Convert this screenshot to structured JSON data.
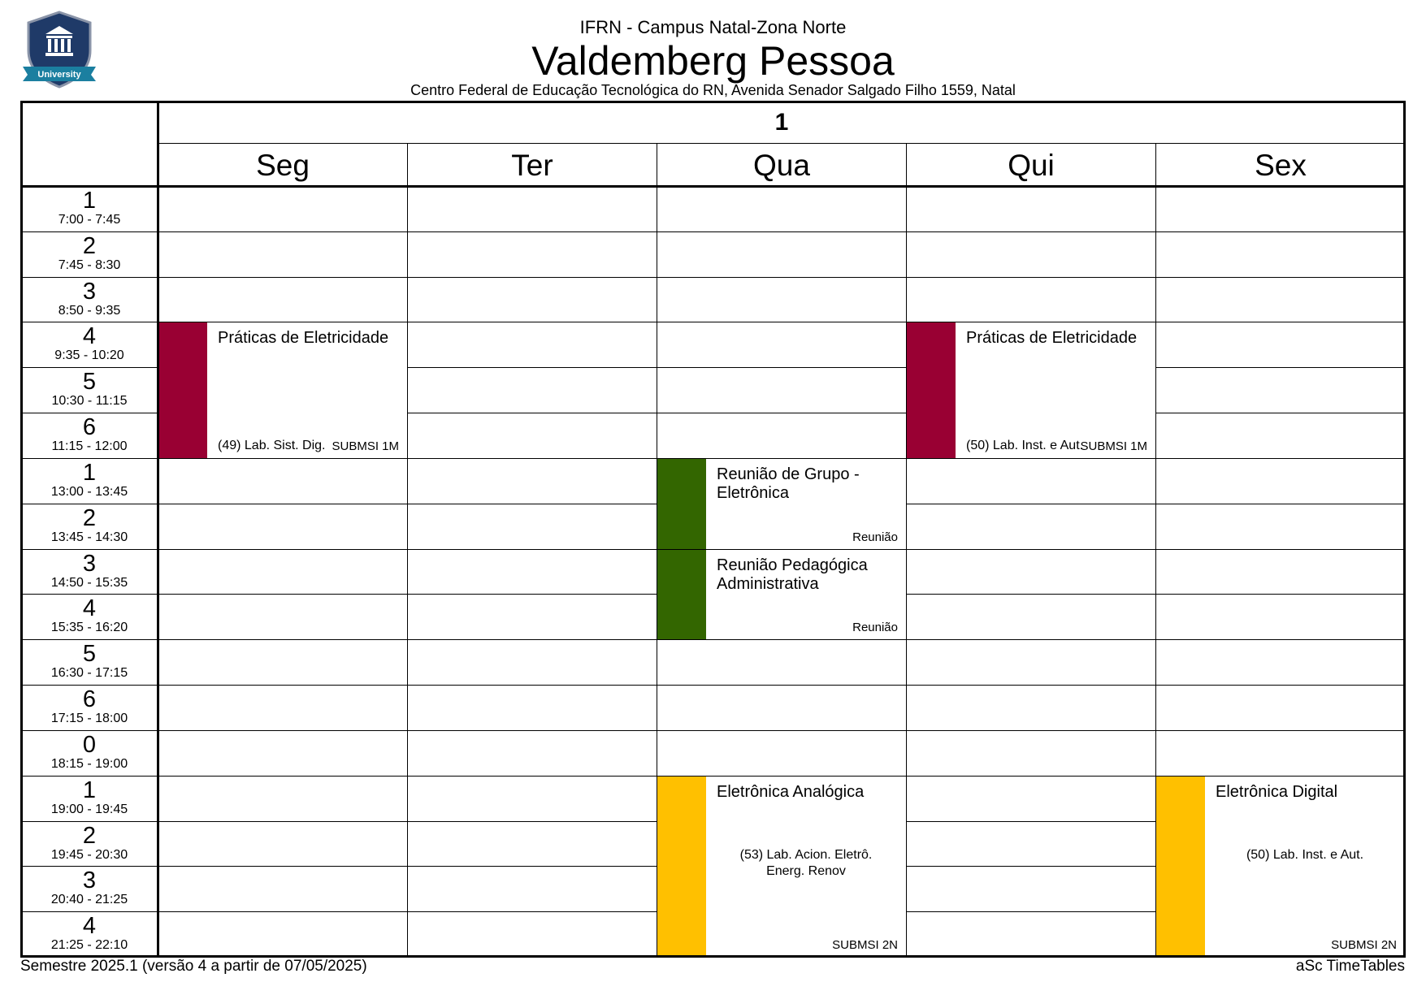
{
  "header": {
    "institution": "IFRN - Campus Natal-Zona Norte",
    "title": "Valdemberg Pessoa",
    "address": "Centro Federal de Educação Tecnológica do RN, Avenida Senador Salgado Filho 1559, Natal",
    "logo_text": "University"
  },
  "table": {
    "week": "1",
    "days": [
      "Seg",
      "Ter",
      "Qua",
      "Qui",
      "Sex"
    ],
    "periods": [
      {
        "num": "1",
        "time": "7:00 - 7:45"
      },
      {
        "num": "2",
        "time": "7:45 - 8:30"
      },
      {
        "num": "3",
        "time": "8:50 - 9:35"
      },
      {
        "num": "4",
        "time": "9:35 - 10:20"
      },
      {
        "num": "5",
        "time": "10:30 - 11:15"
      },
      {
        "num": "6",
        "time": "11:15 - 12:00"
      },
      {
        "num": "1",
        "time": "13:00 - 13:45"
      },
      {
        "num": "2",
        "time": "13:45 - 14:30"
      },
      {
        "num": "3",
        "time": "14:50 - 15:35"
      },
      {
        "num": "4",
        "time": "15:35 - 16:20"
      },
      {
        "num": "5",
        "time": "16:30 - 17:15"
      },
      {
        "num": "6",
        "time": "17:15 - 18:00"
      },
      {
        "num": "0",
        "time": "18:15 - 19:00"
      },
      {
        "num": "1",
        "time": "19:00 - 19:45"
      },
      {
        "num": "2",
        "time": "19:45 - 20:30"
      },
      {
        "num": "3",
        "time": "20:40 - 21:25"
      },
      {
        "num": "4",
        "time": "21:25 - 22:10"
      }
    ],
    "lessons": [
      {
        "day": 0,
        "start": 3,
        "span": 3,
        "color": "#990033",
        "subject": "Práticas de Eletricidade",
        "room": "(49) Lab. Sist. Dig.",
        "group": "SUBMSI 1M"
      },
      {
        "day": 3,
        "start": 3,
        "span": 3,
        "color": "#990033",
        "subject": "Práticas de Eletricidade",
        "room": "(50) Lab. Inst. e Aut.",
        "group": "SUBMSI 1M"
      },
      {
        "day": 2,
        "start": 6,
        "span": 2,
        "color": "#336600",
        "subject": "Reunião de Grupo - Eletrônica",
        "group": "Reunião"
      },
      {
        "day": 2,
        "start": 8,
        "span": 2,
        "color": "#336600",
        "subject": "Reunião Pedagógica Administrativa",
        "group": "Reunião"
      },
      {
        "day": 2,
        "start": 13,
        "span": 4,
        "color": "#ffc000",
        "subject": "Eletrônica Analógica",
        "room": "(53) Lab. Acion. Eletrô. Energ. Renov",
        "group": "SUBMSI 2N"
      },
      {
        "day": 4,
        "start": 13,
        "span": 4,
        "color": "#ffc000",
        "subject": "Eletrônica Digital",
        "room": "(50) Lab. Inst. e Aut.",
        "group": "SUBMSI 2N"
      }
    ]
  },
  "footer": {
    "left": "Semestre 2025.1 (versão 4 a partir de 07/05/2025)",
    "right": "aSc TimeTables"
  }
}
